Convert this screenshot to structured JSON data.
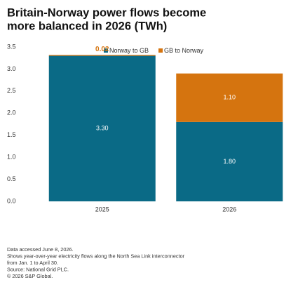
{
  "chart_data": {
    "type": "stacked-bar",
    "title": [
      "Britain-Norway power flows become",
      "more balanced in 2026 (TWh)"
    ],
    "categories": [
      "2025",
      "2026"
    ],
    "series": [
      {
        "name": "Norway to GB",
        "color": "#0a6a86",
        "values": [
          3.3,
          1.8
        ],
        "value_labels": [
          "3.30",
          "1.80"
        ]
      },
      {
        "name": "GB to Norway",
        "color": "#d5740f",
        "values": [
          0.02,
          1.1
        ],
        "value_labels": [
          "0.02",
          "1.10"
        ]
      }
    ],
    "ylim": [
      0,
      3.5
    ],
    "yticks": [
      {
        "value": 0,
        "label": "0.0"
      },
      {
        "value": 0.5,
        "label": "0.5"
      },
      {
        "value": 1,
        "label": "1.0"
      },
      {
        "value": 1.5,
        "label": "1.5"
      },
      {
        "value": 2,
        "label": "2.0"
      },
      {
        "value": 2.5,
        "label": "2.5"
      },
      {
        "value": 3,
        "label": "3.0"
      },
      {
        "value": 3.5,
        "label": "3.5"
      }
    ],
    "grid": false,
    "notes": [
      "Data accessed June 8, 2026.",
      "Shows year-over-year electricity flows along the North Sea Link interconnector",
      "from Jan. 1 to April 30.",
      "Source: National Grid PLC.",
      "© 2026 S&P Global."
    ]
  }
}
